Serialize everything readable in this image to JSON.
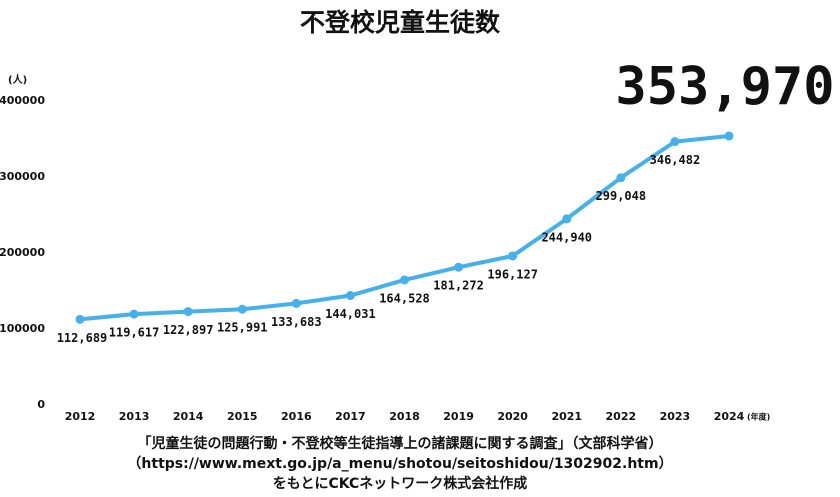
{
  "chart_data": {
    "type": "line",
    "title": "不登校児童生徒数",
    "y_unit": "(人)",
    "x_unit": "(年度)",
    "categories": [
      "2012",
      "2013",
      "2014",
      "2015",
      "2016",
      "2017",
      "2018",
      "2019",
      "2020",
      "2021",
      "2022",
      "2023",
      "2024"
    ],
    "values": [
      112689,
      119617,
      122897,
      125991,
      133683,
      144031,
      164528,
      181272,
      196127,
      244940,
      299048,
      346482,
      353970
    ],
    "value_labels": [
      "112,689",
      "119,617",
      "122,897",
      "125,991",
      "133,683",
      "144,031",
      "164,528",
      "181,272",
      "196,127",
      "244,940",
      "299,048",
      "346,482",
      "353,970"
    ],
    "color": "#45b0ea",
    "ylim": [
      0,
      400000
    ],
    "yticks": [
      0,
      100000,
      200000,
      300000,
      400000
    ],
    "grid": false,
    "source": [
      "「児童生徒の問題行動・不登校等生徒指導上の諸課題に関する調査」（文部科学省）",
      "（https://www.mext.go.jp/a_menu/shotou/seitoshidou/1302902.htm）",
      "をもとにCKCネットワーク株式会社作成"
    ]
  }
}
